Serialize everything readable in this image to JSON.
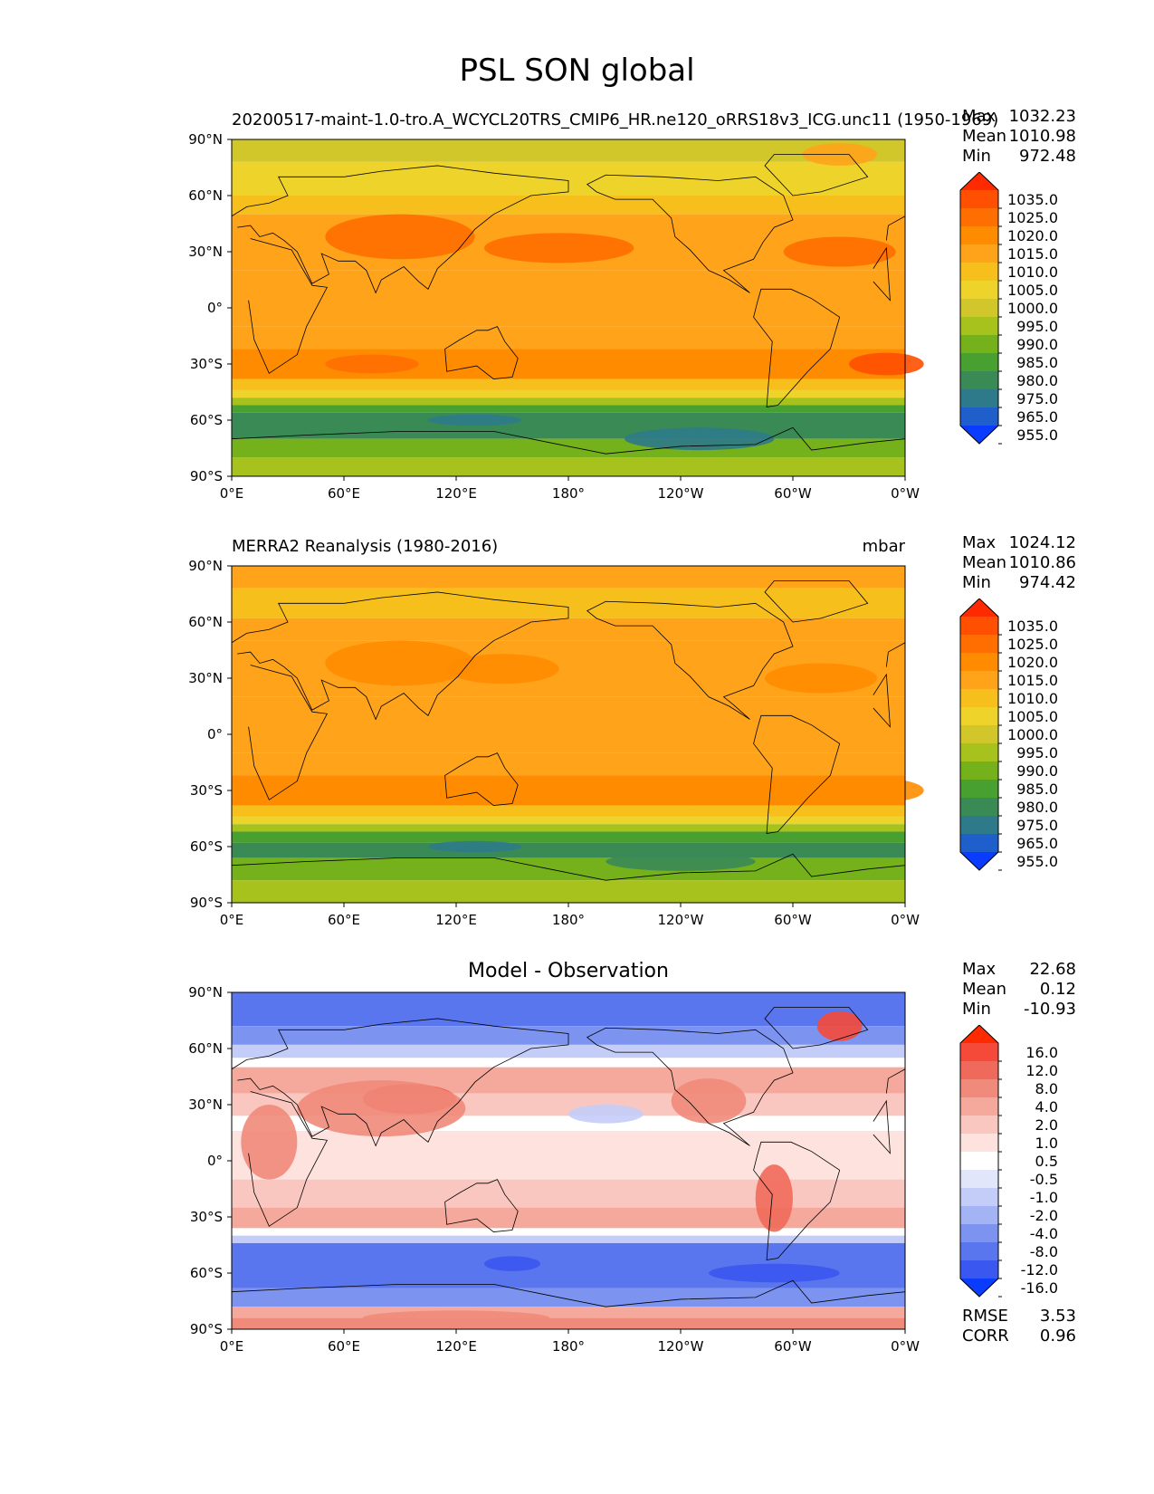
{
  "title": "PSL SON global",
  "axes": {
    "lat_labels": [
      "90°N",
      "60°N",
      "30°N",
      "0°",
      "30°S",
      "60°S",
      "90°S"
    ],
    "lon_labels": [
      "0°E",
      "60°E",
      "120°E",
      "180°",
      "120°W",
      "60°W",
      "0°W"
    ]
  },
  "panels": [
    {
      "left_title": "20200517-maint-1.0-tro.A_WCYCL20TRS_CMIP6_HR.ne120_oRRS18v3_ICG.unc11 (1950-1969)",
      "right_title": "mbar",
      "stats": [
        {
          "label": "Max",
          "value": "1032.23"
        },
        {
          "label": "Mean",
          "value": "1010.98"
        },
        {
          "label": "Min",
          "value": "972.48"
        }
      ],
      "colorbar": {
        "levels": [
          "1035.0",
          "1025.0",
          "1020.0",
          "1015.0",
          "1010.0",
          "1005.0",
          "1000.0",
          "995.0",
          "990.0",
          "985.0",
          "980.0",
          "975.0",
          "965.0",
          "955.0"
        ],
        "colors": [
          "#ff2a00",
          "#ff4f00",
          "#ff6e00",
          "#ff8c00",
          "#ffa31a",
          "#f7bf1b",
          "#eed32a",
          "#d1c72a",
          "#a7c11d",
          "#74b11a",
          "#47a030",
          "#3a8a56",
          "#2e7a8a",
          "#1f5fcc",
          "#0a3cff"
        ]
      }
    },
    {
      "left_title": "MERRA2 Reanalysis (1980-2016)",
      "right_title": "mbar",
      "stats": [
        {
          "label": "Max",
          "value": "1024.12"
        },
        {
          "label": "Mean",
          "value": "1010.86"
        },
        {
          "label": "Min",
          "value": "974.42"
        }
      ],
      "colorbar": {
        "levels": [
          "1035.0",
          "1025.0",
          "1020.0",
          "1015.0",
          "1010.0",
          "1005.0",
          "1000.0",
          "995.0",
          "990.0",
          "985.0",
          "980.0",
          "975.0",
          "965.0",
          "955.0"
        ],
        "colors": [
          "#ff2a00",
          "#ff4f00",
          "#ff6e00",
          "#ff8c00",
          "#ffa31a",
          "#f7bf1b",
          "#eed32a",
          "#d1c72a",
          "#a7c11d",
          "#74b11a",
          "#47a030",
          "#3a8a56",
          "#2e7a8a",
          "#1f5fcc",
          "#0a3cff"
        ]
      }
    },
    {
      "center_title": "Model - Observation",
      "stats": [
        {
          "label": "Max",
          "value": "22.68"
        },
        {
          "label": "Mean",
          "value": "0.12"
        },
        {
          "label": "Min",
          "value": "-10.93"
        }
      ],
      "colorbar": {
        "levels": [
          "16.0",
          "12.0",
          "8.0",
          "4.0",
          "2.0",
          "1.0",
          "0.5",
          "-0.5",
          "-1.0",
          "-2.0",
          "-4.0",
          "-8.0",
          "-12.0",
          "-16.0"
        ],
        "colors": [
          "#ff2a00",
          "#f54a3a",
          "#ef6a5a",
          "#f08a7a",
          "#f5a89c",
          "#f9c7bf",
          "#fde2dd",
          "#ffffff",
          "#e1e6fb",
          "#c4cdf8",
          "#a3b3f4",
          "#7d93f0",
          "#5a76ee",
          "#3a57f0",
          "#0a3cff"
        ]
      },
      "extra_stats": [
        {
          "label": "RMSE",
          "value": "3.53"
        },
        {
          "label": "CORR",
          "value": "0.96"
        }
      ]
    }
  ]
}
